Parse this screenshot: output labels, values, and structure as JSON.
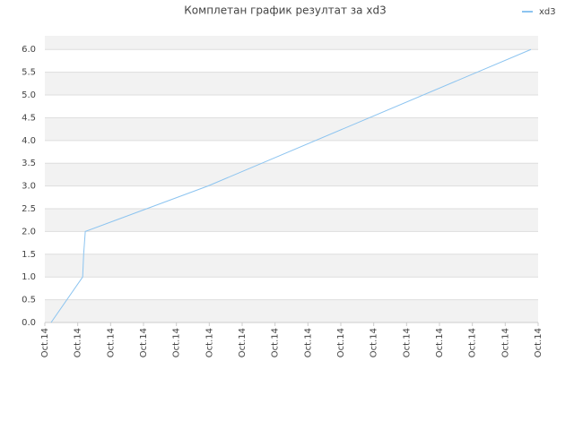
{
  "chart_data": {
    "type": "line",
    "title": "Комплетан график резултат за xd3",
    "x": [
      0.19,
      1.15,
      1.18,
      1.23,
      4.96,
      14.78
    ],
    "series": [
      {
        "name": "xd3",
        "color": "#8cc4f0",
        "values": [
          0,
          1,
          1.5,
          2,
          3,
          6
        ]
      }
    ],
    "xlim": [
      0,
      15
    ],
    "xticks": [
      {
        "value": 0,
        "label": "Oct.14"
      },
      {
        "value": 1,
        "label": "Oct.14"
      },
      {
        "value": 2,
        "label": "Oct.14"
      },
      {
        "value": 3,
        "label": "Oct.14"
      },
      {
        "value": 4,
        "label": "Oct.14"
      },
      {
        "value": 5,
        "label": "Oct.14"
      },
      {
        "value": 6,
        "label": "Oct.14"
      },
      {
        "value": 7,
        "label": "Oct.14"
      },
      {
        "value": 8,
        "label": "Oct.14"
      },
      {
        "value": 9,
        "label": "Oct.14"
      },
      {
        "value": 10,
        "label": "Oct.14"
      },
      {
        "value": 11,
        "label": "Oct.14"
      },
      {
        "value": 12,
        "label": "Oct.14"
      },
      {
        "value": 13,
        "label": "Oct.14"
      },
      {
        "value": 14,
        "label": "Oct.14"
      },
      {
        "value": 15,
        "label": "Oct.14"
      }
    ],
    "ylim": [
      0,
      6.3
    ],
    "yticks": [
      {
        "value": 0,
        "label": "0.0"
      },
      {
        "value": 0.5,
        "label": "0.5"
      },
      {
        "value": 1,
        "label": "1.0"
      },
      {
        "value": 1.5,
        "label": "1.5"
      },
      {
        "value": 2,
        "label": "2.0"
      },
      {
        "value": 2.5,
        "label": "2.5"
      },
      {
        "value": 3,
        "label": "3.0"
      },
      {
        "value": 3.5,
        "label": "3.5"
      },
      {
        "value": 4,
        "label": "4.0"
      },
      {
        "value": 4.5,
        "label": "4.5"
      },
      {
        "value": 5,
        "label": "5.0"
      },
      {
        "value": 5.5,
        "label": "5.5"
      },
      {
        "value": 6,
        "label": "6.0"
      }
    ],
    "grid": true,
    "legend": "top-right"
  }
}
